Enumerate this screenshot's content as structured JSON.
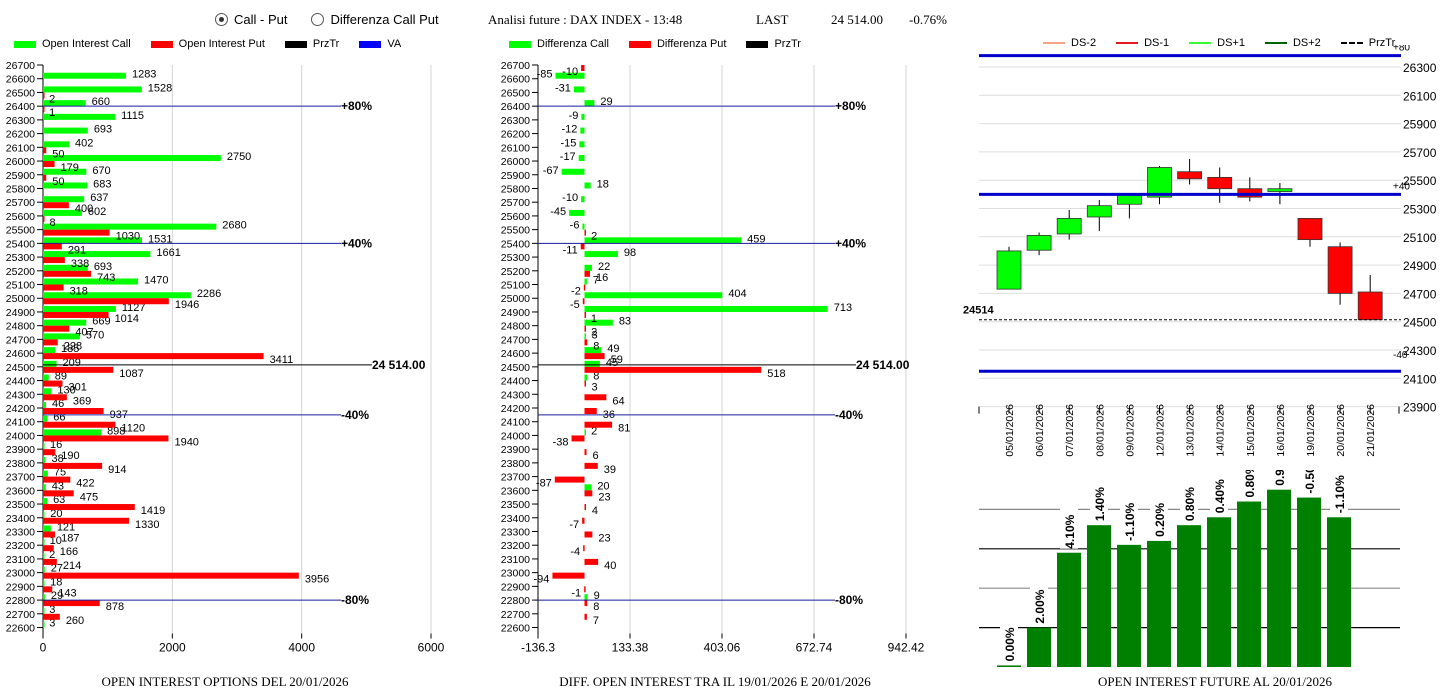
{
  "controls": {
    "radio_options": [
      {
        "label": "Call - Put",
        "checked": true
      },
      {
        "label": "Differenza Call Put",
        "checked": false
      }
    ]
  },
  "header": {
    "title": "Analisi future : DAX INDEX - 13:48",
    "last_label": "LAST",
    "last_value": "24 514.00",
    "change": "-0.76%"
  },
  "colors": {
    "call": "#00ff00",
    "put": "#ff0000",
    "przTr": "#000000",
    "va": "#0000ff",
    "vaLine": "#1a1aa0",
    "future_bar": "#008000"
  },
  "chart_data": [
    {
      "id": "oi_options",
      "type": "bar",
      "orientation": "horizontal",
      "title": "OPEN INTEREST OPTIONS DEL 20/01/2026",
      "legend": [
        "Open Interest Call",
        "Open Interest Put",
        "PrzTr",
        "VA"
      ],
      "legend_placement": "top",
      "xlim": [
        0,
        6000
      ],
      "xticks": [
        "0",
        "2000",
        "4000",
        "6000"
      ],
      "categories": [
        26700,
        26600,
        26500,
        26400,
        26300,
        26200,
        26100,
        26000,
        25900,
        25800,
        25700,
        25600,
        25500,
        25400,
        25300,
        25200,
        25100,
        25000,
        24900,
        24800,
        24700,
        24600,
        24500,
        24400,
        24300,
        24200,
        24100,
        24000,
        23900,
        23800,
        23700,
        23600,
        23500,
        23400,
        23300,
        23200,
        23100,
        23000,
        22900,
        22800,
        22700,
        22600
      ],
      "series": [
        {
          "name": "Open Interest Call",
          "values": [
            null,
            1283,
            1528,
            660,
            1115,
            693,
            402,
            2750,
            670,
            683,
            637,
            602,
            2680,
            1531,
            1661,
            693,
            1470,
            2286,
            1127,
            669,
            570,
            185,
            209,
            89,
            130,
            46,
            66,
            898,
            16,
            38,
            75,
            43,
            63,
            20,
            121,
            10,
            2,
            27,
            18,
            29,
            3,
            3
          ]
        },
        {
          "name": "Open Interest Put",
          "values": [
            null,
            null,
            2,
            1,
            null,
            null,
            50,
            179,
            50,
            null,
            400,
            8,
            1030,
            291,
            338,
            743,
            318,
            1946,
            1014,
            407,
            228,
            3411,
            1087,
            301,
            369,
            937,
            1120,
            1940,
            190,
            914,
            422,
            475,
            1419,
            1330,
            187,
            166,
            214,
            3956,
            143,
            878,
            260,
            null
          ]
        }
      ],
      "annotations": [
        {
          "strike": 26400,
          "label": "+80%",
          "type": "va"
        },
        {
          "strike": 25400,
          "label": "+40%",
          "type": "va"
        },
        {
          "strike": 24514,
          "label": "24 514.00",
          "type": "przTr"
        },
        {
          "strike": 24150,
          "label": "-40%",
          "type": "va"
        },
        {
          "strike": 22800,
          "label": "-80%",
          "type": "va"
        }
      ]
    },
    {
      "id": "oi_diff",
      "type": "bar",
      "orientation": "horizontal",
      "title": "DIFF. OPEN INTEREST TRA IL 19/01/2026 E 20/01/2026",
      "legend": [
        "Differenza Call",
        "Differenza Put",
        "PrzTr"
      ],
      "legend_placement": "top",
      "xlim": [
        -136.3,
        1212.1
      ],
      "xticks": [
        "-136.3",
        "133.38",
        "403.06",
        "672.74",
        "942.42",
        "1212.1"
      ],
      "categories": [
        26700,
        26600,
        26500,
        26400,
        26300,
        26200,
        26100,
        26000,
        25900,
        25800,
        25700,
        25600,
        25500,
        25400,
        25300,
        25200,
        25100,
        25000,
        24900,
        24800,
        24700,
        24600,
        24500,
        24400,
        24300,
        24200,
        24100,
        24000,
        23900,
        23800,
        23700,
        23600,
        23500,
        23400,
        23300,
        23200,
        23100,
        23000,
        22900,
        22800,
        22700,
        22600
      ],
      "series": [
        {
          "name": "Differenza Call",
          "values": [
            null,
            -85,
            -31,
            29,
            -9,
            -12,
            -15,
            -17,
            -67,
            18,
            -10,
            -45,
            -6,
            459,
            98,
            22,
            7,
            404,
            713,
            83,
            3,
            49,
            45,
            8,
            null,
            null,
            null,
            2,
            null,
            null,
            null,
            20,
            null,
            null,
            null,
            null,
            null,
            null,
            null,
            9,
            null,
            null
          ]
        },
        {
          "name": "Differenza Put",
          "values": [
            -10,
            null,
            null,
            null,
            null,
            null,
            null,
            null,
            null,
            null,
            null,
            null,
            2,
            -11,
            null,
            16,
            -2,
            -5,
            1,
            2,
            8,
            59,
            518,
            3,
            64,
            36,
            81,
            -38,
            6,
            39,
            -87,
            23,
            4,
            -7,
            23,
            -4,
            40,
            -94,
            -1,
            8,
            7,
            null
          ]
        }
      ],
      "annotations": [
        {
          "strike": 26400,
          "label": "+80%",
          "type": "va"
        },
        {
          "strike": 25400,
          "label": "+40%",
          "type": "va"
        },
        {
          "strike": 24514,
          "label": "24 514.00",
          "type": "przTr"
        },
        {
          "strike": 24150,
          "label": "-40%",
          "type": "va"
        },
        {
          "strike": 22800,
          "label": "-80%",
          "type": "va"
        }
      ]
    },
    {
      "id": "candles",
      "type": "candlestick",
      "legend": [
        "DS-2",
        "DS-1",
        "DS+1",
        "DS+2",
        "PrzTr"
      ],
      "legend_colors": [
        "#f4a582",
        "#e31a1c",
        "#33ff33",
        "#006400",
        "#000000"
      ],
      "legend_placement": "top",
      "ylim": [
        23900,
        26400
      ],
      "yticks": [
        26300,
        26100,
        25900,
        25700,
        25500,
        25300,
        25100,
        24900,
        24700,
        24500,
        24300,
        24100,
        23900
      ],
      "x": [
        "05/01/2026",
        "06/01/2026",
        "07/01/2026",
        "08/01/2026",
        "09/01/2026",
        "12/01/2026",
        "13/01/2026",
        "14/01/2026",
        "15/01/2026",
        "16/01/2026",
        "19/01/2026",
        "20/01/2026",
        "21/01/2026"
      ],
      "ohlc": [
        [
          24730,
          25030,
          24730,
          25000
        ],
        [
          25005,
          25130,
          24970,
          25110
        ],
        [
          25120,
          25290,
          25080,
          25230
        ],
        [
          25240,
          25360,
          25140,
          25320
        ],
        [
          25330,
          25410,
          25230,
          25400
        ],
        [
          25380,
          25600,
          25330,
          25590
        ],
        [
          25560,
          25650,
          25470,
          25510
        ],
        [
          25520,
          25590,
          25340,
          25440
        ],
        [
          25440,
          25520,
          25350,
          25380
        ],
        [
          25420,
          25480,
          25330,
          25440
        ],
        [
          25230,
          25230,
          25030,
          25080
        ],
        [
          25030,
          25060,
          24620,
          24700
        ],
        [
          24710,
          24830,
          24510,
          24514
        ]
      ],
      "hlines": [
        {
          "value": 26380,
          "label": "+80",
          "color": "#0000cc"
        },
        {
          "value": 25400,
          "label": "+40",
          "color": "#0000cc"
        },
        {
          "value": 24514,
          "label": "24514",
          "color": "#000000",
          "dashed": true
        },
        {
          "value": 24150,
          "label": "-40",
          "color": "#0000cc"
        }
      ]
    },
    {
      "id": "oi_future",
      "type": "bar",
      "title": "OPEN INTEREST FUTURE AL 20/01/2026",
      "categories": [
        "05/01/2026",
        "06/01/2026",
        "07/01/2026",
        "08/01/2026",
        "09/01/2026",
        "12/01/2026",
        "13/01/2026",
        "14/01/2026",
        "15/01/2026",
        "16/01/2026",
        "19/01/2026",
        "20/01/2026"
      ],
      "values": [
        0.04,
        1.0,
        2.9,
        3.6,
        3.1,
        3.2,
        3.6,
        3.8,
        4.2,
        4.5,
        4.3,
        3.8
      ],
      "labels": [
        "0.00%",
        "2.00%",
        "4.10%",
        "1.40%",
        "-1.10%",
        "0.20%",
        "0.80%",
        "0.40%",
        "0.80%",
        "0.90%",
        "-0.50%",
        "-1.10%"
      ],
      "ylim": [
        0,
        5
      ],
      "grid": true
    }
  ]
}
